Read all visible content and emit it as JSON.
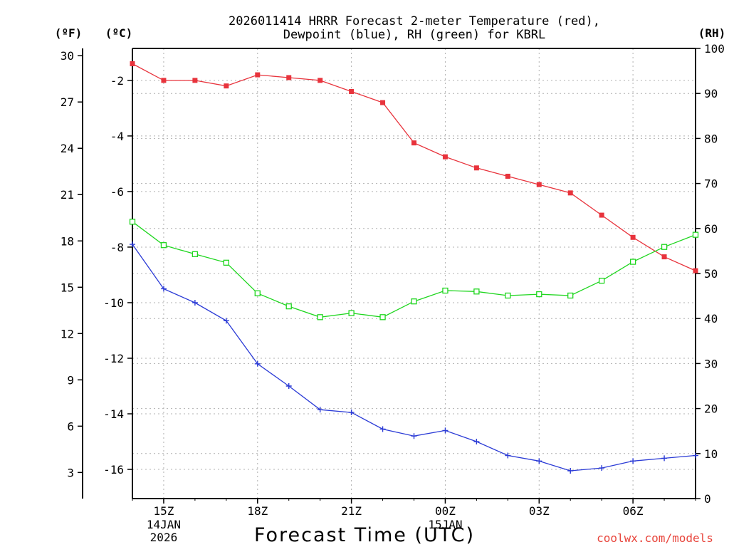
{
  "chart_data": {
    "type": "line",
    "title_line1": "2026011414 HRRR Forecast 2-meter Temperature (red),",
    "title_line2": "Dewpoint (blue), RH (green) for KBRL",
    "unit_f": "(ºF)",
    "unit_c": "(ºC)",
    "unit_rh": "(RH)",
    "xlabel": "Forecast Time (UTC)",
    "credit": "coolwx.com/models",
    "x_hours": [
      14,
      15,
      16,
      17,
      18,
      19,
      20,
      21,
      22,
      23,
      24,
      25,
      26,
      27,
      28,
      29,
      30,
      31,
      32
    ],
    "x_ticks": [
      {
        "hour": 15,
        "label": "15Z",
        "sub1": "14JAN",
        "sub2": "2026"
      },
      {
        "hour": 18,
        "label": "18Z",
        "sub1": "",
        "sub2": ""
      },
      {
        "hour": 21,
        "label": "21Z",
        "sub1": "",
        "sub2": ""
      },
      {
        "hour": 24,
        "label": "00Z",
        "sub1": "15JAN",
        "sub2": ""
      },
      {
        "hour": 27,
        "label": "03Z",
        "sub1": "",
        "sub2": ""
      },
      {
        "hour": 30,
        "label": "06Z",
        "sub1": "",
        "sub2": ""
      }
    ],
    "xlim": [
      14,
      32
    ],
    "ylim_c": [
      -17.05,
      -0.85
    ],
    "yticks_c": [
      -2,
      -4,
      -6,
      -8,
      -10,
      -12,
      -14,
      -16
    ],
    "yticks_f": [
      30,
      27,
      24,
      21,
      18,
      15,
      12,
      9,
      6,
      3
    ],
    "ylim_rh": [
      0,
      100
    ],
    "yticks_rh": [
      100,
      90,
      80,
      70,
      60,
      50,
      40,
      30,
      20,
      10,
      0
    ],
    "series": [
      {
        "name": "Temperature",
        "color": "#e8333c",
        "axis": "c",
        "marker": "filled-square",
        "values": [
          -1.4,
          -2.0,
          -2.0,
          -2.2,
          -1.8,
          -1.9,
          -2.0,
          -2.4,
          -2.8,
          -4.25,
          -4.75,
          -5.15,
          -5.45,
          -5.75,
          -6.05,
          -6.85,
          -7.65,
          -8.35,
          -8.85
        ]
      },
      {
        "name": "Dewpoint",
        "color": "#2b3bd6",
        "axis": "c",
        "marker": "plus",
        "values": [
          -7.9,
          -9.5,
          -10.0,
          -10.65,
          -12.2,
          -13.0,
          -13.85,
          -13.95,
          -14.55,
          -14.8,
          -14.6,
          -15.0,
          -15.5,
          -15.7,
          -16.05,
          -15.95,
          -15.7,
          -15.6,
          -15.5
        ]
      },
      {
        "name": "RH",
        "color": "#1fd61f",
        "axis": "rh",
        "marker": "open-square",
        "values": [
          61.5,
          56.3,
          54.3,
          52.4,
          45.6,
          42.7,
          40.3,
          41.2,
          40.3,
          43.8,
          46.2,
          46.0,
          45.1,
          45.4,
          45.1,
          48.4,
          52.6,
          55.9,
          58.6
        ]
      }
    ]
  }
}
